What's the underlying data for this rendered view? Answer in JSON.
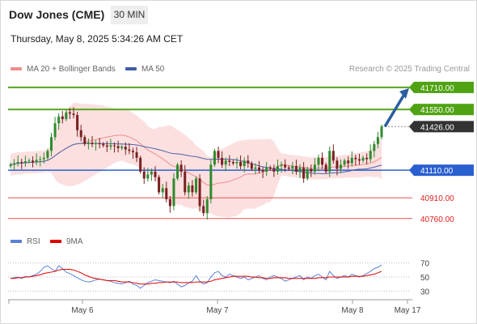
{
  "header": {
    "instrument": "Dow Jones (CME)",
    "timeframe": "30 MIN",
    "timestamp": "Thursday, May 8, 2025 5:34:26 AM CET"
  },
  "legend": {
    "ma20_label": "MA 20 + Bollinger Bands",
    "ma50_label": "MA 50",
    "credit": "Research © 2025 Trading Central",
    "rsi_label": "RSI",
    "ma9_label": "9MA"
  },
  "colors": {
    "up": "#2e8b2e",
    "down": "#7a2020",
    "green_level": "#5aa51e",
    "blue_level": "#2a5fd0",
    "red_level": "#e85050",
    "bollinger": "#fbd6d6",
    "ma20": "#f08c8c",
    "ma50": "#4a62a8",
    "last": "#333333",
    "arrow": "#2b5f9e",
    "rsi": "#5a82d4",
    "rsi_ma": "#e00000"
  },
  "chart_data": {
    "type": "candlestick",
    "title": "Dow Jones (CME)",
    "timeframe": "30 MIN",
    "ylim": [
      40700,
      41780
    ],
    "price_levels": [
      {
        "value": 41710,
        "label": "41710.00",
        "kind": "resistance"
      },
      {
        "value": 41550,
        "label": "41550.00",
        "kind": "resistance"
      },
      {
        "value": 41426,
        "label": "41426.00",
        "kind": "last"
      },
      {
        "value": 41110,
        "label": "41110.00",
        "kind": "pivot"
      },
      {
        "value": 40910,
        "label": "40910.00",
        "kind": "support"
      },
      {
        "value": 40760,
        "label": "40760.00",
        "kind": "support"
      }
    ],
    "x_ticks": [
      "May 6",
      "May 7",
      "May 8",
      "May 17"
    ],
    "closes": [
      41150,
      41160,
      41170,
      41165,
      41175,
      41180,
      41170,
      41185,
      41190,
      41200,
      41250,
      41350,
      41450,
      41500,
      41480,
      41530,
      41520,
      41510,
      41400,
      41350,
      41300,
      41310,
      41300,
      41305,
      41300,
      41290,
      41280,
      41290,
      41285,
      41270,
      41280,
      41260,
      41250,
      41240,
      41200,
      41100,
      41050,
      41080,
      41100,
      41060,
      40950,
      40980,
      40900,
      40850,
      41050,
      41150,
      41100,
      40950,
      41000,
      40950,
      41050,
      40850,
      40800,
      40900,
      41150,
      41250,
      41200,
      41150,
      41180,
      41170,
      41160,
      41170,
      41140,
      41180,
      41160,
      41120,
      41130,
      41110,
      41100,
      41130,
      41120,
      41100,
      41140,
      41150,
      41130,
      41120,
      41140,
      41100,
      41130,
      41050,
      41120,
      41100,
      41150,
      41200,
      41150,
      41100,
      41250,
      41180,
      41120,
      41150,
      41180,
      41160,
      41200,
      41190,
      41180,
      41200,
      41190,
      41250,
      41300,
      41350,
      41426
    ],
    "rsi": {
      "ylim": [
        20,
        80
      ],
      "levels": [
        70,
        50,
        30
      ],
      "values": [
        48,
        49,
        50,
        48,
        51,
        50,
        52,
        54,
        58,
        64,
        66,
        62,
        58,
        66,
        62,
        57,
        55,
        52,
        49,
        46,
        44,
        43,
        44,
        46,
        47,
        46,
        45,
        44,
        42,
        41,
        40,
        42,
        44,
        40,
        38,
        34,
        38,
        42,
        44,
        46,
        45,
        44,
        43,
        42,
        44,
        40,
        36,
        38,
        42,
        44,
        52,
        44,
        40,
        42,
        50,
        56,
        58,
        52,
        50,
        54,
        52,
        50,
        48,
        50,
        46,
        48,
        50,
        52,
        48,
        46,
        50,
        52,
        50,
        48,
        44,
        46,
        48,
        50,
        52,
        46,
        50,
        48,
        52,
        54,
        50,
        46,
        58,
        52,
        48,
        50,
        52,
        50,
        54,
        52,
        50,
        52,
        55,
        58,
        62,
        64,
        67
      ],
      "ma9": [
        48,
        48,
        49,
        49,
        50,
        50,
        51,
        52,
        53,
        55,
        56,
        57,
        58,
        60,
        61,
        61,
        61,
        60,
        58,
        56,
        53,
        51,
        49,
        48,
        47,
        46,
        45,
        45,
        45,
        44,
        43,
        43,
        43,
        42,
        41,
        40,
        40,
        40,
        41,
        41,
        42,
        42,
        43,
        43,
        43,
        43,
        42,
        42,
        42,
        42,
        43,
        43,
        43,
        43,
        44,
        46,
        47,
        48,
        49,
        50,
        51,
        51,
        51,
        51,
        51,
        50,
        50,
        49,
        49,
        48,
        48,
        49,
        49,
        49,
        49,
        48,
        48,
        48,
        48,
        48,
        48,
        48,
        48,
        49,
        49,
        49,
        50,
        50,
        50,
        50,
        50,
        50,
        51,
        51,
        51,
        51,
        52,
        53,
        54,
        56,
        58
      ]
    }
  }
}
